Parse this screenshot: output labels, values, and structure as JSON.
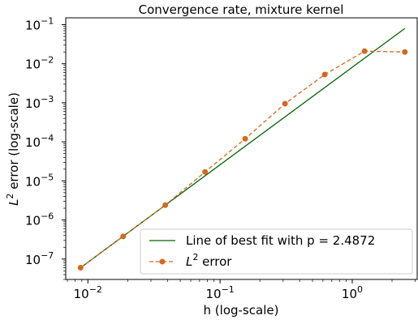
{
  "chart_data": {
    "type": "line",
    "title": "Convergence rate, mixture kernel",
    "xlabel": "h (log-scale)",
    "ylabel": "L² error (log-scale)",
    "xscale": "log",
    "yscale": "log",
    "xlim": [
      0.0068,
      3.1
    ],
    "ylim": [
      3e-08,
      0.15
    ],
    "x_ticks": [
      {
        "value": 0.01,
        "base": "10",
        "exp": "−2"
      },
      {
        "value": 0.1,
        "base": "10",
        "exp": "−1"
      },
      {
        "value": 1,
        "base": "10",
        "exp": "0"
      }
    ],
    "y_ticks": [
      {
        "value": 1e-07,
        "base": "10",
        "exp": "−7"
      },
      {
        "value": 1e-06,
        "base": "10",
        "exp": "−6"
      },
      {
        "value": 1e-05,
        "base": "10",
        "exp": "−5"
      },
      {
        "value": 0.0001,
        "base": "10",
        "exp": "−4"
      },
      {
        "value": 0.001,
        "base": "10",
        "exp": "−3"
      },
      {
        "value": 0.01,
        "base": "10",
        "exp": "−2"
      },
      {
        "value": 0.1,
        "base": "10",
        "exp": "−1"
      }
    ],
    "series": [
      {
        "name": "Line of best fit with p = 2.4872",
        "color": "#006400",
        "style": "solid",
        "x": [
          0.0088,
          2.5
        ],
        "y": [
          6e-08,
          0.08
        ]
      },
      {
        "name": "L² error",
        "color": "#d2691e",
        "style": "dashed",
        "marker": "circle",
        "x": [
          0.0088,
          0.0185,
          0.0385,
          0.077,
          0.155,
          0.31,
          0.62,
          1.24,
          2.5
        ],
        "y": [
          6e-08,
          3.8e-07,
          2.4e-06,
          1.7e-05,
          0.00012,
          0.00095,
          0.0053,
          0.021,
          0.02
        ]
      }
    ],
    "legend": {
      "position": "lower-right",
      "entries": [
        "Line of best fit with p = 2.4872",
        "L",
        "2",
        "error"
      ]
    },
    "grid": false
  }
}
